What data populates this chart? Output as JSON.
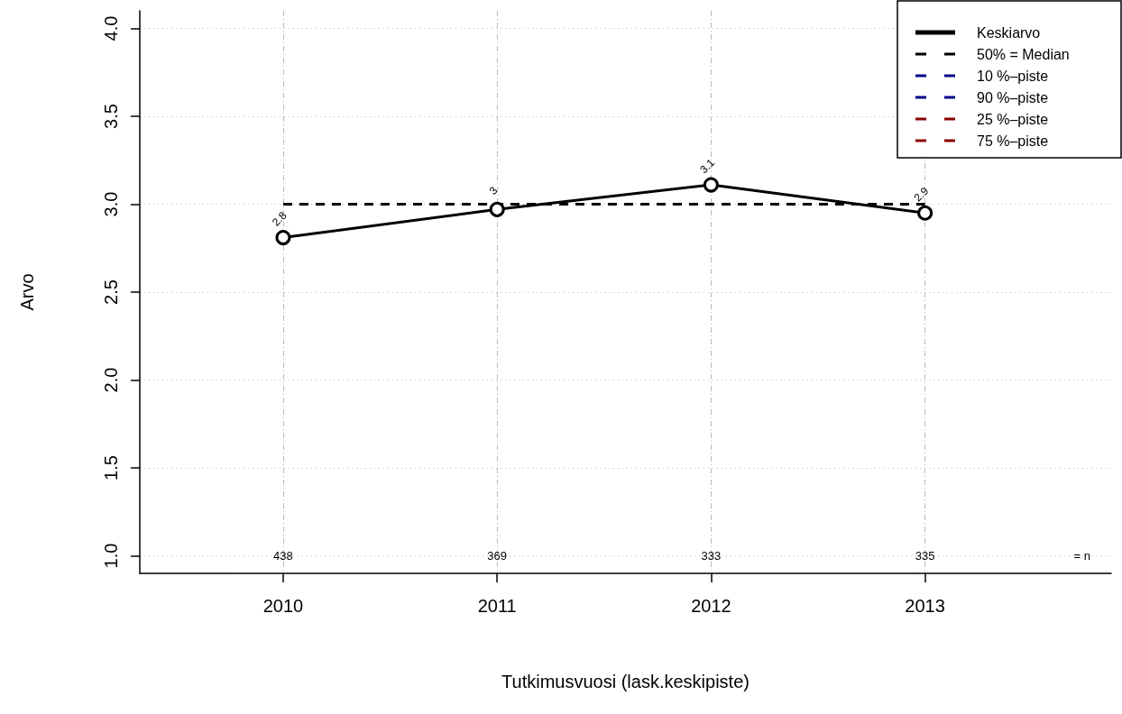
{
  "chart_data": {
    "type": "line",
    "xlabel": "Tutkimusvuosi (lask.keskipiste)",
    "ylabel": "Arvo",
    "x": [
      2010,
      2011,
      2012,
      2013
    ],
    "series": [
      {
        "name": "Keskiarvo",
        "color": "#000000",
        "values": [
          2.81,
          2.97,
          3.11,
          2.95
        ],
        "value_labels": [
          "2.8",
          "3",
          "3.1",
          "2.9"
        ],
        "marker": "circle",
        "line_style": "solid"
      },
      {
        "name": "50% = Median",
        "color": "#000000",
        "values": [
          3,
          3,
          3,
          3
        ],
        "marker": "none",
        "line_style": "dashed"
      },
      {
        "name": "10 %–piste",
        "color": "#00008b",
        "values": [
          null,
          null,
          null,
          null
        ],
        "marker": "none",
        "line_style": "dashed"
      },
      {
        "name": "90 %–piste",
        "color": "#00008b",
        "values": [
          null,
          null,
          null,
          null
        ],
        "marker": "none",
        "line_style": "dashed"
      },
      {
        "name": "25 %–piste",
        "color": "#8b0000",
        "values": [
          null,
          null,
          null,
          null
        ],
        "marker": "none",
        "line_style": "dashed"
      },
      {
        "name": "75 %–piste",
        "color": "#8b0000",
        "values": [
          null,
          null,
          null,
          null
        ],
        "marker": "none",
        "line_style": "dashed"
      }
    ],
    "xlim": [
      2009.33,
      2013.87
    ],
    "xticks": [
      2010,
      2011,
      2012,
      2013
    ],
    "ylim": [
      0.9,
      4.1
    ],
    "yticks": [
      {
        "value": 1,
        "label": "1.0"
      },
      1.5,
      {
        "value": 2,
        "label": "2.0"
      },
      2.5,
      {
        "value": 3,
        "label": "3.0"
      },
      3.5,
      {
        "value": 4,
        "label": "4.0"
      }
    ],
    "grid": true,
    "legend": "top right",
    "annotations": [
      "438",
      "369",
      "333",
      "335",
      "= n"
    ]
  }
}
